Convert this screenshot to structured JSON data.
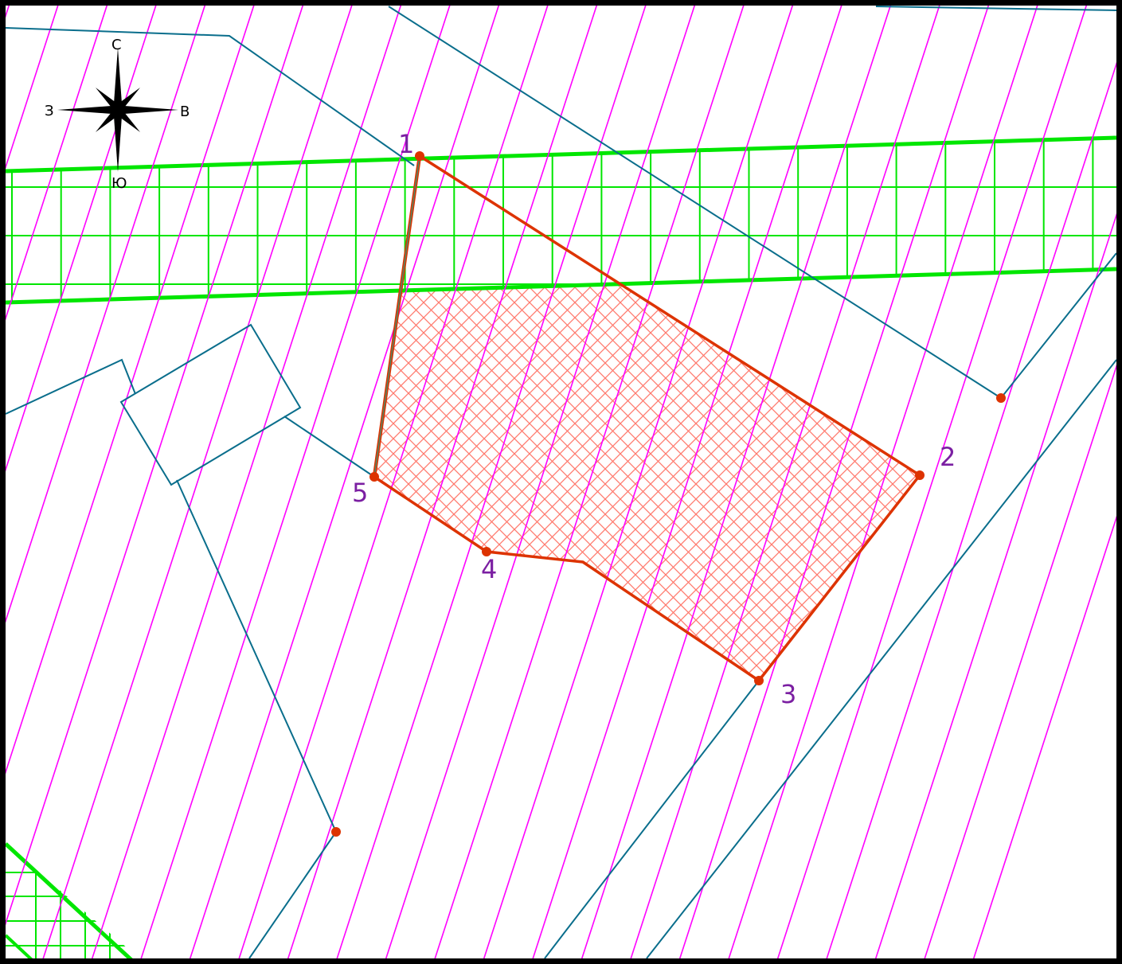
{
  "compass": {
    "north": "С",
    "south": "Ю",
    "east": "В",
    "west": "З"
  },
  "parcel": {
    "vertices": [
      "1",
      "2",
      "3",
      "4",
      "5"
    ]
  },
  "colors": {
    "frame": "#000000",
    "magenta_hatch": "#ff00ff",
    "boundary_blue": "#0a6e8c",
    "green_zone": "#00e600",
    "parcel_border": "#dd3300",
    "parcel_hatch": "#ff7a6e",
    "point": "#dd3300",
    "vertex_label": "#7b1fa2"
  },
  "icons": {
    "compass": "compass-rose-icon",
    "point": "point-marker-icon"
  }
}
